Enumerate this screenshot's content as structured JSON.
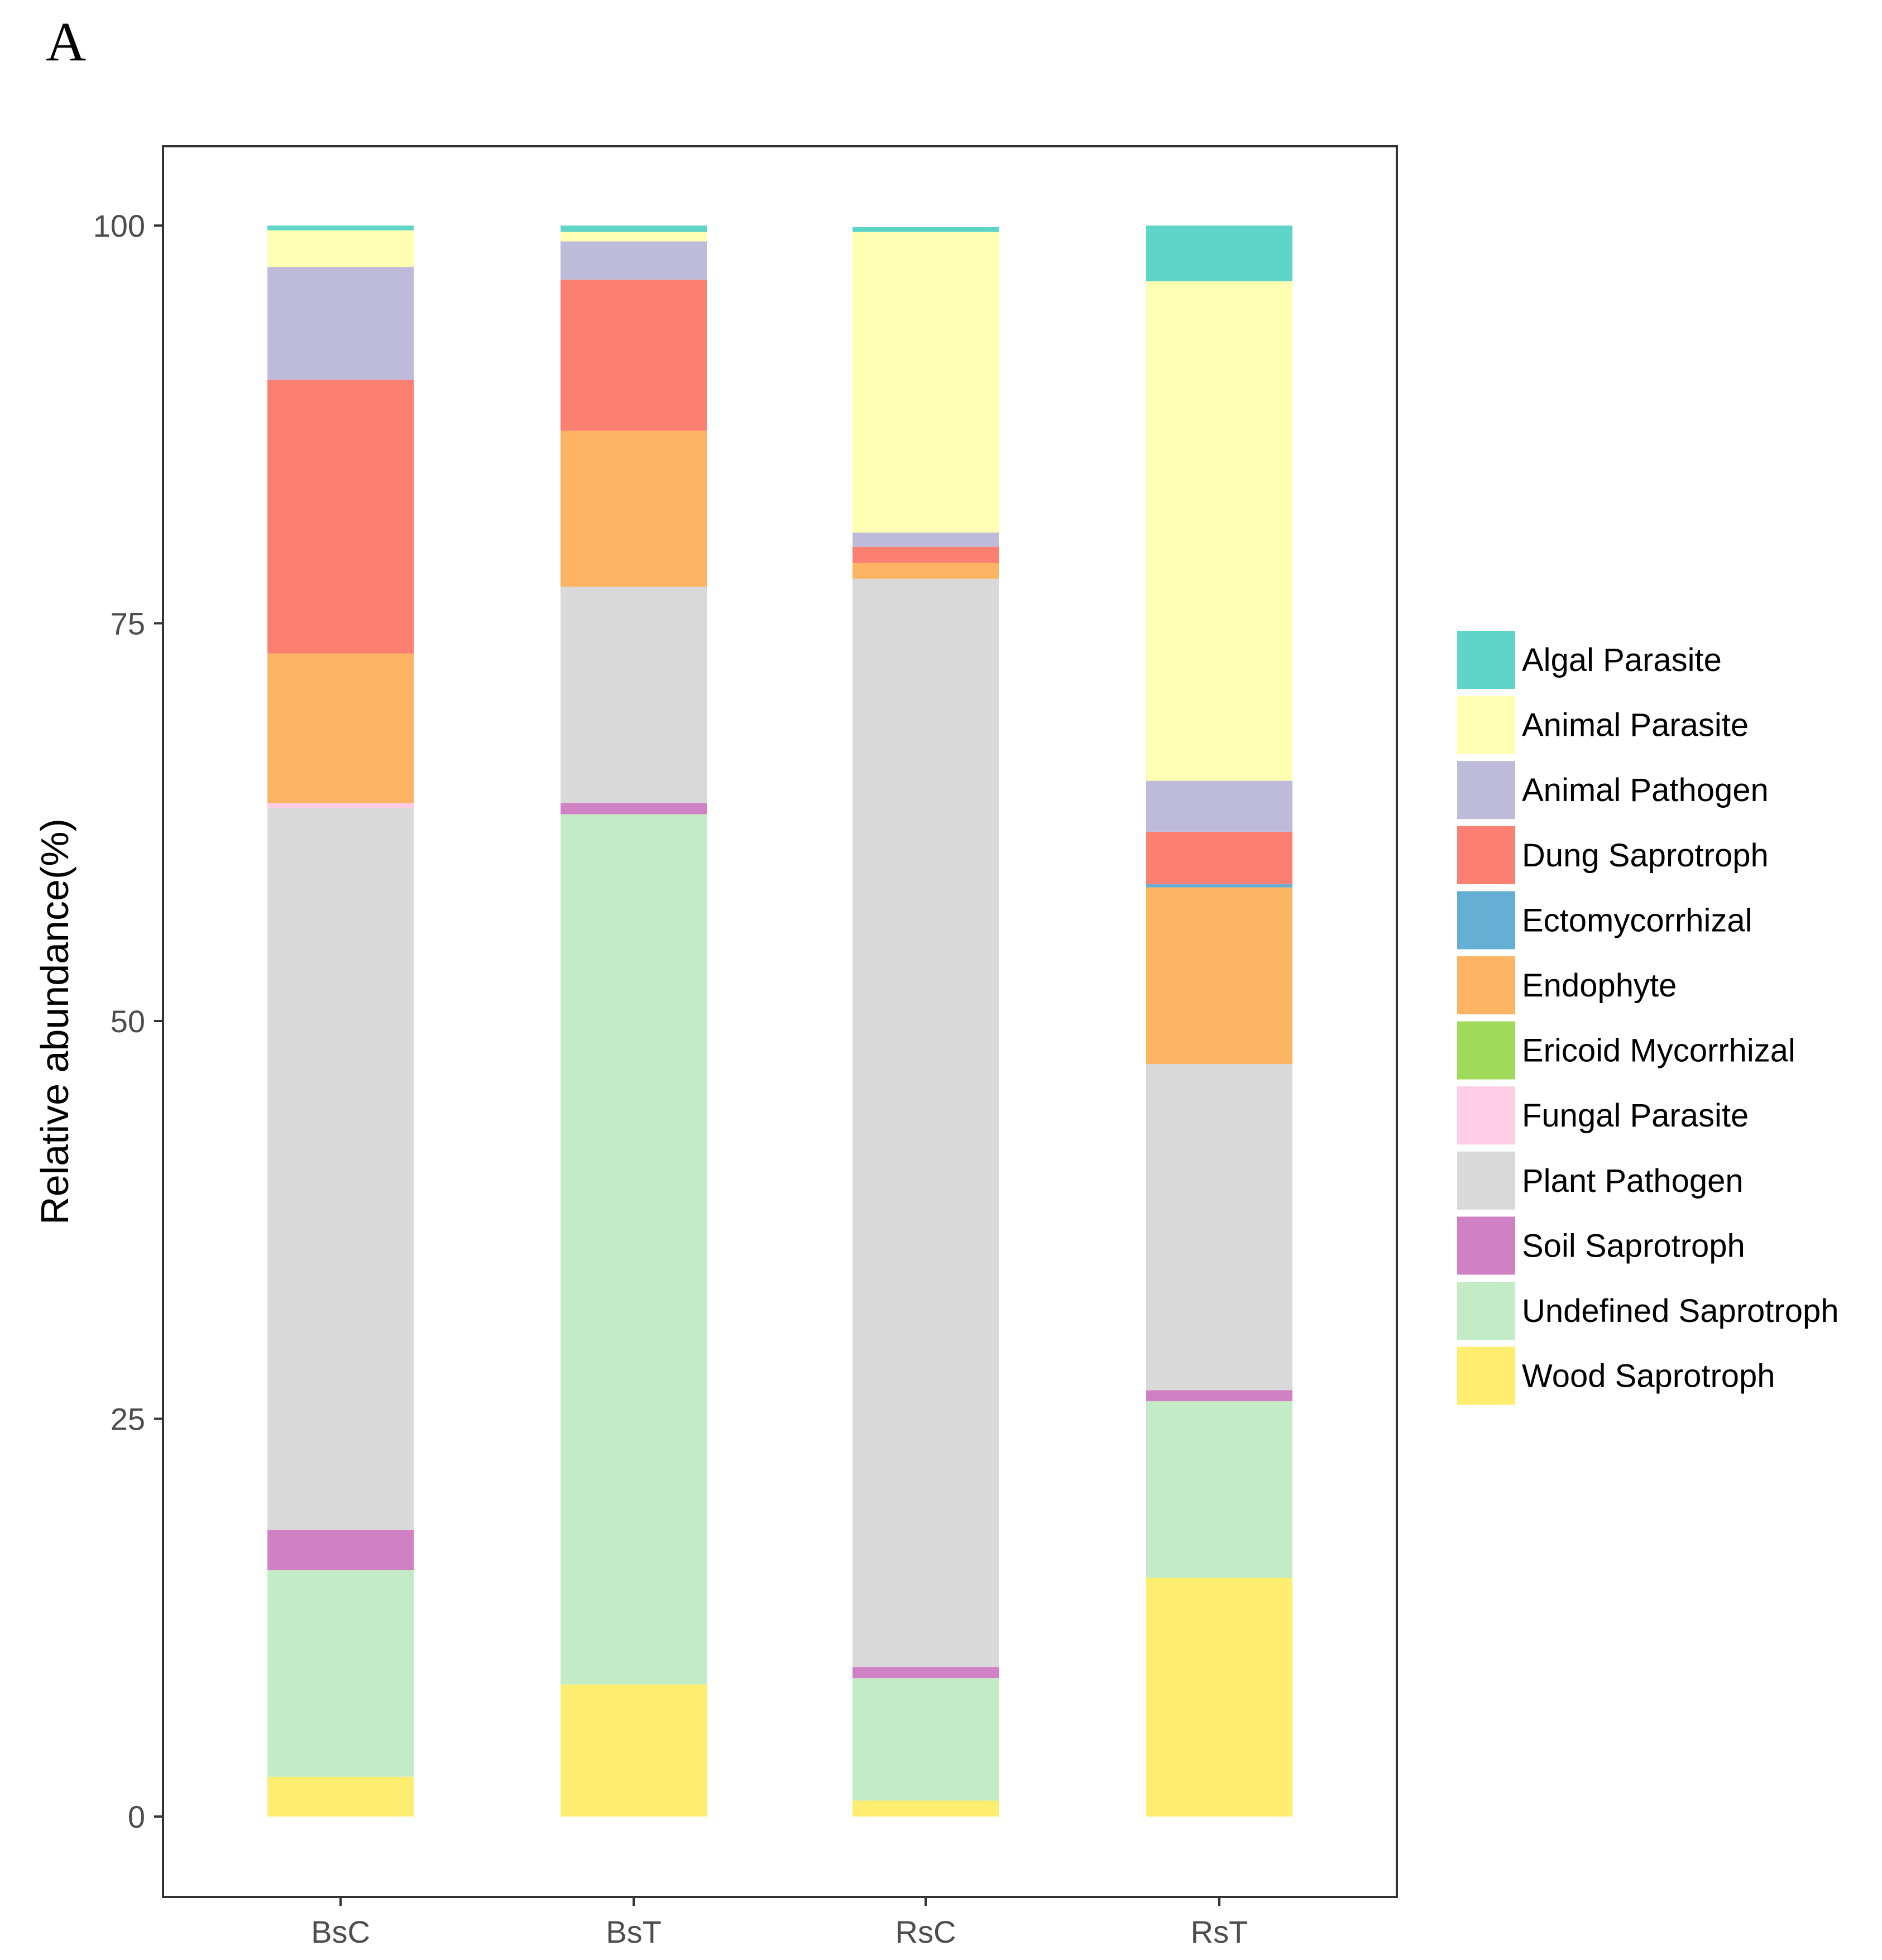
{
  "panel_label": "A",
  "chart_data": {
    "type": "bar",
    "stacked": true,
    "title": "",
    "xlabel": "",
    "ylabel": "Relative abundance(%)",
    "ylim": [
      0,
      100
    ],
    "yticks": [
      0,
      25,
      50,
      75,
      100
    ],
    "categories": [
      "BsC",
      "BsT",
      "RsC",
      "RsT"
    ],
    "series": [
      {
        "name": "Wood Saprotroph",
        "color": "#FFED6F",
        "values": [
          2.5,
          8.3,
          1.0,
          15.0
        ]
      },
      {
        "name": "Undefined Saprotroph",
        "color": "#C3EBC5",
        "values": [
          13.0,
          54.7,
          7.7,
          11.1
        ]
      },
      {
        "name": "Soil Saprotroph",
        "color": "#D081C3",
        "values": [
          2.5,
          0.7,
          0.7,
          0.7
        ]
      },
      {
        "name": "Plant Pathogen",
        "color": "#D9D9D9",
        "values": [
          45.4,
          13.6,
          68.4,
          20.5
        ]
      },
      {
        "name": "Fungal Parasite",
        "color": "#FCCDE5",
        "values": [
          0.3,
          0.0,
          0.0,
          0.0
        ]
      },
      {
        "name": "Ericoid Mycorrhizal",
        "color": "#A0DA5A",
        "values": [
          0.0,
          0.0,
          0.0,
          0.0
        ]
      },
      {
        "name": "Endophyte",
        "color": "#FDB462",
        "values": [
          9.4,
          9.8,
          1.0,
          11.1
        ]
      },
      {
        "name": "Ectomycorrhizal",
        "color": "#64AFD3",
        "values": [
          0.0,
          0.0,
          0.0,
          0.2
        ]
      },
      {
        "name": "Dung Saprotroph",
        "color": "#FB8072",
        "values": [
          17.2,
          9.5,
          1.0,
          3.3
        ]
      },
      {
        "name": "Animal Pathogen",
        "color": "#BEBADA",
        "values": [
          7.1,
          2.4,
          0.9,
          3.2
        ]
      },
      {
        "name": "Animal Parasite",
        "color": "#FFFFB3",
        "values": [
          2.3,
          0.6,
          18.9,
          31.4
        ]
      },
      {
        "name": "Algal Parasite",
        "color": "#5FD4C8",
        "values": [
          0.3,
          0.4,
          0.3,
          3.5
        ]
      }
    ],
    "legend": {
      "position": "right",
      "entries": [
        "Algal Parasite",
        "Animal Parasite",
        "Animal Pathogen",
        "Dung Saprotroph",
        "Ectomycorrhizal",
        "Endophyte",
        "Ericoid Mycorrhizal",
        "Fungal Parasite",
        "Plant Pathogen",
        "Soil Saprotroph",
        "Undefined Saprotroph",
        "Wood Saprotroph"
      ]
    },
    "grid": false
  }
}
